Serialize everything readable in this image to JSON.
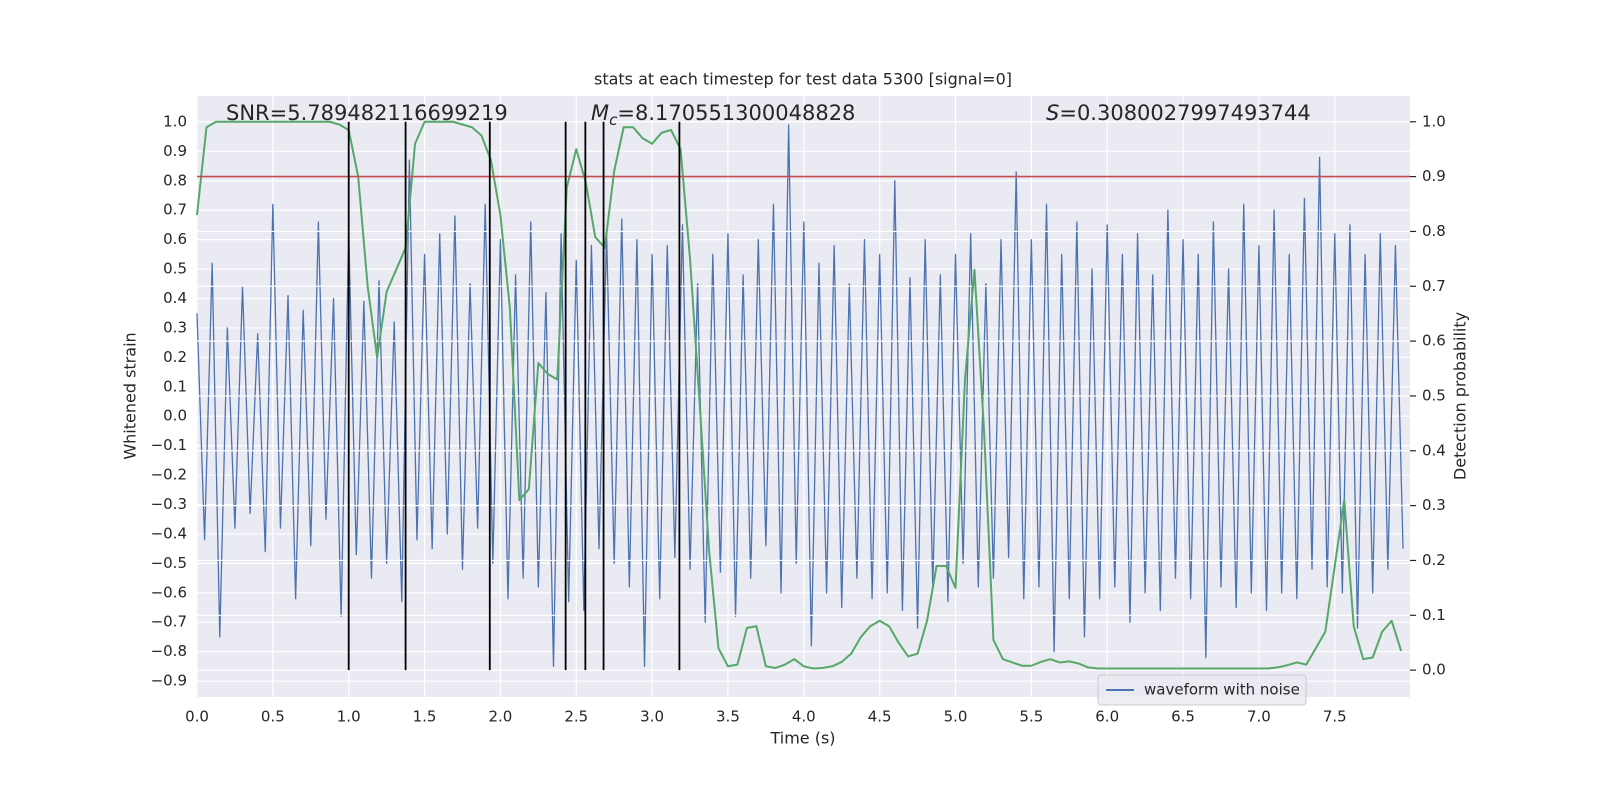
{
  "chart_data": {
    "type": "line",
    "title": "stats at each timestep for test data 5300 [signal=0]",
    "x_label": "Time (s)",
    "y_label": "Whitened strain",
    "y2_label": "Detection probability",
    "annotations": [
      {
        "text": "SNR=5.789482116699219"
      },
      {
        "symbol": "M",
        "subscript": "c",
        "text": "=8.170551300048828"
      },
      {
        "symbol": "S",
        "text": "=0.3080027997493744"
      }
    ],
    "xlim": [
      0,
      7.996
    ],
    "ylim": [
      -0.954,
      1.088
    ],
    "y2lim": [
      -0.049,
      1.047
    ],
    "xticks": [
      {
        "value": 0,
        "label": "0.0"
      },
      0.5,
      {
        "value": 1,
        "label": "1.0"
      },
      1.5,
      {
        "value": 2,
        "label": "2.0"
      },
      2.5,
      {
        "value": 3,
        "label": "3.0"
      },
      3.5,
      {
        "value": 4,
        "label": "4.0"
      },
      4.5,
      {
        "value": 5,
        "label": "5.0"
      },
      5.5,
      {
        "value": 6,
        "label": "6.0"
      },
      6.5,
      {
        "value": 7,
        "label": "7.0"
      },
      7.5
    ],
    "yticks": [
      {
        "value": 1,
        "label": "1.0"
      },
      0.9,
      0.8,
      0.7,
      0.6,
      0.5,
      0.4,
      0.3,
      0.2,
      0.1,
      {
        "value": 0,
        "label": "0.0"
      },
      {
        "value": -0.1,
        "label": "−0.1"
      },
      {
        "value": -0.2,
        "label": "−0.2"
      },
      {
        "value": -0.3,
        "label": "−0.3"
      },
      {
        "value": -0.4,
        "label": "−0.4"
      },
      {
        "value": -0.5,
        "label": "−0.5"
      },
      {
        "value": -0.6,
        "label": "−0.6"
      },
      {
        "value": -0.7,
        "label": "−0.7"
      },
      {
        "value": -0.8,
        "label": "−0.8"
      },
      {
        "value": -0.9,
        "label": "−0.9"
      }
    ],
    "y2ticks": [
      {
        "value": 0,
        "label": "0.0"
      },
      0.1,
      0.2,
      0.3,
      0.4,
      0.5,
      0.6,
      0.7,
      0.8,
      0.9,
      {
        "value": 1,
        "label": "1.0"
      }
    ],
    "grid": true,
    "legend": "lower right",
    "series": [
      {
        "name": "waveform with noise",
        "color": "#4c72b0",
        "x": [
          0,
          0.05,
          0.1,
          0.15,
          0.2,
          0.25,
          0.3,
          0.35,
          0.4,
          0.45,
          0.5,
          0.55,
          0.6,
          0.65,
          0.7,
          0.75,
          0.8,
          0.85,
          0.9,
          0.95,
          1,
          1.05,
          1.1,
          1.15,
          1.2,
          1.25,
          1.3,
          1.35,
          1.4,
          1.45,
          1.5,
          1.55,
          1.6,
          1.65,
          1.7,
          1.75,
          1.8,
          1.85,
          1.9,
          1.95,
          2,
          2.05,
          2.1,
          2.15,
          2.2,
          2.25,
          2.3,
          2.35,
          2.4,
          2.45,
          2.5,
          2.55,
          2.6,
          2.65,
          2.7,
          2.75,
          2.8,
          2.85,
          2.9,
          2.95,
          3,
          3.05,
          3.1,
          3.15,
          3.2,
          3.25,
          3.3,
          3.35,
          3.4,
          3.45,
          3.5,
          3.55,
          3.6,
          3.65,
          3.7,
          3.75,
          3.8,
          3.85,
          3.9,
          3.95,
          4,
          4.05,
          4.1,
          4.15,
          4.2,
          4.25,
          4.3,
          4.35,
          4.4,
          4.45,
          4.5,
          4.55,
          4.6,
          4.65,
          4.7,
          4.75,
          4.8,
          4.85,
          4.9,
          4.95,
          5,
          5.05,
          5.1,
          5.15,
          5.2,
          5.25,
          5.3,
          5.35,
          5.4,
          5.45,
          5.5,
          5.55,
          5.6,
          5.65,
          5.7,
          5.75,
          5.8,
          5.85,
          5.9,
          5.95,
          6,
          6.05,
          6.1,
          6.15,
          6.2,
          6.25,
          6.3,
          6.35,
          6.4,
          6.45,
          6.5,
          6.55,
          6.6,
          6.65,
          6.7,
          6.75,
          6.8,
          6.85,
          6.9,
          6.95,
          7,
          7.05,
          7.1,
          7.15,
          7.2,
          7.25,
          7.3,
          7.35,
          7.4,
          7.45,
          7.5,
          7.55,
          7.6,
          7.65,
          7.7,
          7.75,
          7.8,
          7.85,
          7.9,
          7.95
        ],
        "values": [
          0.35,
          -0.42,
          0.52,
          -0.75,
          0.3,
          -0.38,
          0.44,
          -0.33,
          0.28,
          -0.46,
          0.72,
          -0.38,
          0.41,
          -0.62,
          0.36,
          -0.44,
          0.66,
          -0.35,
          0.4,
          -0.68,
          0.63,
          -0.47,
          0.39,
          -0.55,
          0.46,
          -0.5,
          0.32,
          -0.63,
          0.87,
          -0.42,
          0.55,
          -0.45,
          0.62,
          -0.4,
          0.68,
          -0.52,
          0.45,
          -0.38,
          0.72,
          -0.5,
          0.6,
          -0.62,
          0.48,
          -0.55,
          0.66,
          -0.58,
          0.42,
          -0.85,
          0.62,
          -0.63,
          0.53,
          -0.66,
          0.58,
          -0.45,
          0.62,
          -0.5,
          0.67,
          -0.58,
          0.6,
          -0.85,
          0.55,
          -0.62,
          0.58,
          -0.48,
          0.65,
          -0.52,
          0.45,
          -0.7,
          0.55,
          -0.53,
          0.62,
          -0.68,
          0.48,
          -0.55,
          0.6,
          -0.44,
          0.72,
          -0.6,
          0.99,
          -0.5,
          0.66,
          -0.78,
          0.52,
          -0.6,
          0.58,
          -0.65,
          0.45,
          -0.55,
          0.6,
          -0.62,
          0.55,
          -0.6,
          0.8,
          -0.66,
          0.47,
          -0.72,
          0.6,
          -0.58,
          0.48,
          -0.63,
          0.55,
          -0.5,
          0.62,
          -0.58,
          0.45,
          -0.55,
          0.6,
          -0.48,
          0.83,
          -0.62,
          0.6,
          -0.58,
          0.72,
          -0.8,
          0.55,
          -0.62,
          0.66,
          -0.75,
          0.5,
          -0.62,
          0.65,
          -0.58,
          0.55,
          -0.7,
          0.62,
          -0.6,
          0.48,
          -0.66,
          0.7,
          -0.55,
          0.6,
          -0.62,
          0.55,
          -0.82,
          0.66,
          -0.58,
          0.5,
          -0.65,
          0.72,
          -0.6,
          0.58,
          -0.66,
          0.7,
          -0.6,
          0.55,
          -0.62,
          0.74,
          -0.52,
          0.88,
          -0.58,
          0.62,
          -0.6,
          0.65,
          -0.72,
          0.55,
          -0.6,
          0.62,
          -0.52,
          0.58,
          -0.45
        ]
      },
      {
        "color": "#55a868",
        "axis": "y2",
        "x": [
          0,
          0.0625,
          0.125,
          0.1875,
          0.25,
          0.3125,
          0.375,
          0.4375,
          0.5,
          0.5625,
          0.625,
          0.6875,
          0.75,
          0.8125,
          0.875,
          0.9375,
          1,
          1.0625,
          1.125,
          1.1875,
          1.25,
          1.3125,
          1.375,
          1.4375,
          1.5,
          1.5625,
          1.625,
          1.6875,
          1.75,
          1.8125,
          1.875,
          1.9375,
          2,
          2.0625,
          2.125,
          2.1875,
          2.25,
          2.3125,
          2.375,
          2.4375,
          2.5,
          2.5625,
          2.625,
          2.6875,
          2.75,
          2.8125,
          2.875,
          2.9375,
          3,
          3.0625,
          3.125,
          3.1875,
          3.25,
          3.3125,
          3.375,
          3.4375,
          3.5,
          3.5625,
          3.625,
          3.6875,
          3.75,
          3.8125,
          3.875,
          3.9375,
          4,
          4.0625,
          4.125,
          4.1875,
          4.25,
          4.3125,
          4.375,
          4.4375,
          4.5,
          4.5625,
          4.625,
          4.6875,
          4.75,
          4.8125,
          4.875,
          4.9375,
          5,
          5.0625,
          5.125,
          5.1875,
          5.25,
          5.3125,
          5.375,
          5.4375,
          5.5,
          5.5625,
          5.625,
          5.6875,
          5.75,
          5.8125,
          5.875,
          5.9375,
          6,
          6.0625,
          6.125,
          6.1875,
          6.25,
          6.3125,
          6.375,
          6.4375,
          6.5,
          6.5625,
          6.625,
          6.6875,
          6.75,
          6.8125,
          6.875,
          6.9375,
          7,
          7.0625,
          7.125,
          7.1875,
          7.25,
          7.3125,
          7.375,
          7.4375,
          7.5,
          7.5625,
          7.625,
          7.6875,
          7.75,
          7.8125,
          7.875,
          7.9375
        ],
        "values": [
          0.83,
          0.99,
          1.0,
          1.0,
          1.0,
          1.0,
          1.0,
          1.0,
          1.0,
          1.0,
          1.0,
          1.0,
          1.0,
          1.0,
          1.0,
          0.995,
          0.985,
          0.9,
          0.7,
          0.57,
          0.69,
          0.73,
          0.77,
          0.96,
          1.0,
          1.0,
          1.0,
          1.0,
          0.995,
          0.99,
          0.975,
          0.93,
          0.83,
          0.66,
          0.31,
          0.33,
          0.56,
          0.54,
          0.53,
          0.88,
          0.95,
          0.89,
          0.79,
          0.77,
          0.91,
          0.99,
          0.99,
          0.97,
          0.96,
          0.98,
          0.985,
          0.95,
          0.75,
          0.49,
          0.22,
          0.04,
          0.007,
          0.01,
          0.077,
          0.08,
          0.007,
          0.004,
          0.01,
          0.02,
          0.007,
          0.003,
          0.004,
          0.007,
          0.015,
          0.03,
          0.06,
          0.08,
          0.09,
          0.08,
          0.05,
          0.025,
          0.03,
          0.09,
          0.19,
          0.19,
          0.15,
          0.53,
          0.73,
          0.44,
          0.055,
          0.02,
          0.014,
          0.008,
          0.008,
          0.015,
          0.02,
          0.014,
          0.016,
          0.012,
          0.005,
          0.003,
          0.003,
          0.003,
          0.003,
          0.003,
          0.003,
          0.003,
          0.003,
          0.003,
          0.003,
          0.003,
          0.003,
          0.003,
          0.003,
          0.003,
          0.003,
          0.003,
          0.003,
          0.003,
          0.005,
          0.009,
          0.014,
          0.01,
          0.04,
          0.07,
          0.19,
          0.31,
          0.08,
          0.02,
          0.023,
          0.07,
          0.09,
          0.035
        ]
      }
    ],
    "threshold": {
      "value": 0.9,
      "axis": "y2",
      "color": "#c44e52"
    },
    "vlines": {
      "x": [
        1.0,
        1.375,
        1.93,
        2.43,
        2.56,
        2.68,
        3.18
      ],
      "ymin": 0,
      "ymax": 1,
      "axis": "y2",
      "color": "#000000"
    }
  }
}
